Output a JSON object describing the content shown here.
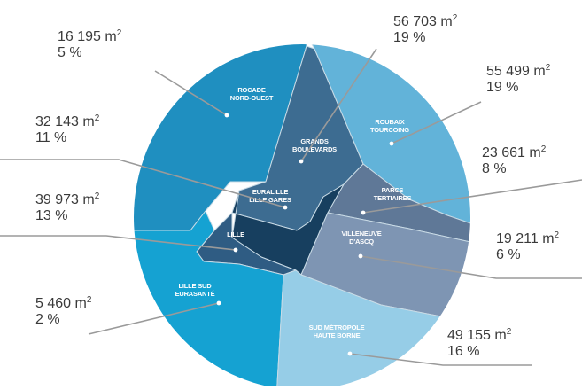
{
  "colors": {
    "background": "#ffffff",
    "leader_line": "#9a9a9a",
    "value_text": "#3a3a3a",
    "area_text": "#ffffff",
    "district_border": "#c9dbe6"
  },
  "chart_data": {
    "type": "pie",
    "units": {
      "area": "m²",
      "share": "%"
    },
    "slices": [
      {
        "key": "rocade",
        "name_lines": [
          "ROCADE",
          "NORD-OUEST"
        ],
        "area_m2": "16 195",
        "share": "5 %",
        "color": "#1f8fc0"
      },
      {
        "key": "grands",
        "name_lines": [
          "GRANDS",
          "BOULEVARDS"
        ],
        "area_m2": "56 703",
        "share": "19 %",
        "color": "#3d6c91"
      },
      {
        "key": "roubaix",
        "name_lines": [
          "ROUBAIX",
          "TOURCOING"
        ],
        "area_m2": "55 499",
        "share": "19 %",
        "color": "#62b3d9"
      },
      {
        "key": "parcs",
        "name_lines": [
          "PARCS",
          "TERTIAIRES"
        ],
        "area_m2": "23 661",
        "share": "8 %",
        "color": "#5f7897"
      },
      {
        "key": "euralille",
        "name_lines": [
          "EURALILLE",
          "LILLE GARES"
        ],
        "area_m2": "32 143",
        "share": "11 %",
        "color": "#173f5f"
      },
      {
        "key": "villeneuve",
        "name_lines": [
          "VILLENEUVE",
          "D'ASCQ"
        ],
        "area_m2": "19 211",
        "share": "6 %",
        "color": "#7e95b3"
      },
      {
        "key": "lille",
        "name_lines": [
          "LILLE"
        ],
        "area_m2": "39 973",
        "share": "13 %",
        "color": "#2f5c83"
      },
      {
        "key": "lillesud",
        "name_lines": [
          "LILLE SUD",
          "EURASANTÉ"
        ],
        "area_m2": "5 460",
        "share": "2 %",
        "color": "#15a2d2"
      },
      {
        "key": "sud",
        "name_lines": [
          "SUD MÉTROPOLE",
          "HAUTE BORNE"
        ],
        "area_m2": "49 155",
        "share": "16 %",
        "color": "#96cde7"
      }
    ]
  }
}
